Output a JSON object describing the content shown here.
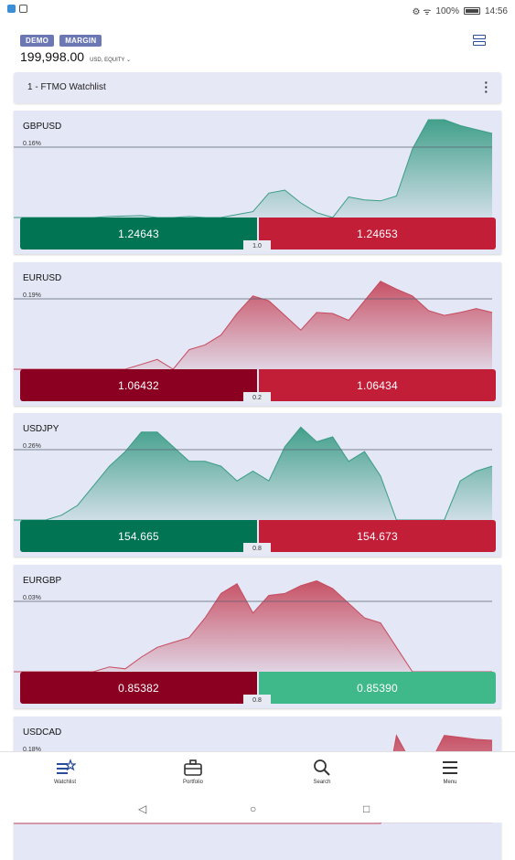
{
  "status_bar": {
    "battery": "100%",
    "time": "14:56"
  },
  "account": {
    "badges": [
      "DEMO",
      "MARGIN"
    ],
    "equity": "199,998.00",
    "equity_label": "USD, EQUITY"
  },
  "watchlist": {
    "title": "1 - FTMO Watchlist"
  },
  "instruments": [
    {
      "symbol": "GBPUSD",
      "change": "0.16%",
      "sell": "1.24643",
      "buy": "1.24653",
      "spread": "1.0",
      "trend": "up",
      "sell_color": "#007453",
      "buy_color": "#c31e38",
      "series": [
        0,
        0,
        0,
        0,
        0,
        0,
        1,
        1.5,
        2,
        0,
        0,
        1,
        0,
        0,
        3,
        6,
        25,
        28,
        15,
        5,
        0,
        21,
        18,
        17,
        22,
        70,
        100,
        100,
        94,
        90,
        86
      ]
    },
    {
      "symbol": "EURUSD",
      "change": "0.19%",
      "sell": "1.06432",
      "buy": "1.06434",
      "spread": "0.2",
      "trend": "down",
      "sell_color": "#8b0020",
      "buy_color": "#c31e38",
      "series": [
        0,
        0,
        0,
        0,
        0,
        0,
        0,
        0,
        5,
        10,
        0,
        20,
        25,
        35,
        57,
        75,
        70,
        55,
        40,
        58,
        57,
        50,
        70,
        90,
        82,
        75,
        60,
        55,
        58,
        62,
        58
      ]
    },
    {
      "symbol": "USDJPY",
      "change": "0.26%",
      "sell": "154.665",
      "buy": "154.673",
      "spread": "0.8",
      "trend": "up",
      "sell_color": "#007453",
      "buy_color": "#c31e38",
      "series": [
        0,
        0,
        0,
        5,
        15,
        35,
        55,
        70,
        90,
        90,
        75,
        60,
        60,
        55,
        40,
        50,
        40,
        75,
        95,
        80,
        85,
        60,
        70,
        45,
        0,
        0,
        0,
        0,
        40,
        50,
        55
      ]
    },
    {
      "symbol": "EURGBP",
      "change": "0.03%",
      "sell": "0.85382",
      "buy": "0.85390",
      "spread": "0.8",
      "trend": "down",
      "sell_color": "#8b0020",
      "buy_color": "#3fb98a",
      "series": [
        0,
        0,
        0,
        0,
        0,
        0,
        5,
        3,
        15,
        25,
        30,
        35,
        55,
        80,
        90,
        60,
        78,
        80,
        88,
        93,
        85,
        70,
        55,
        50,
        25,
        0,
        0,
        0,
        0,
        0,
        0
      ]
    },
    {
      "symbol": "USDCAD",
      "change": "0.18%",
      "sell": "",
      "buy": "",
      "spread": "",
      "trend": "down",
      "sell_color": "#8b0020",
      "buy_color": "#c31e38",
      "series": [
        0,
        0,
        0,
        0,
        0,
        0,
        0,
        0,
        0,
        0,
        0,
        0,
        0,
        0,
        0,
        0,
        0,
        0,
        0,
        0,
        0,
        0,
        0,
        0,
        90,
        60,
        58,
        90,
        88,
        86,
        85
      ]
    }
  ],
  "nav": {
    "watchlist": "Watchlist",
    "portfolio": "Portfolio",
    "search": "Search",
    "menu": "Menu"
  },
  "colors": {
    "up_fill": "#3a9c85",
    "down_fill": "#c64a5e",
    "accent": "#2a4d9a"
  }
}
